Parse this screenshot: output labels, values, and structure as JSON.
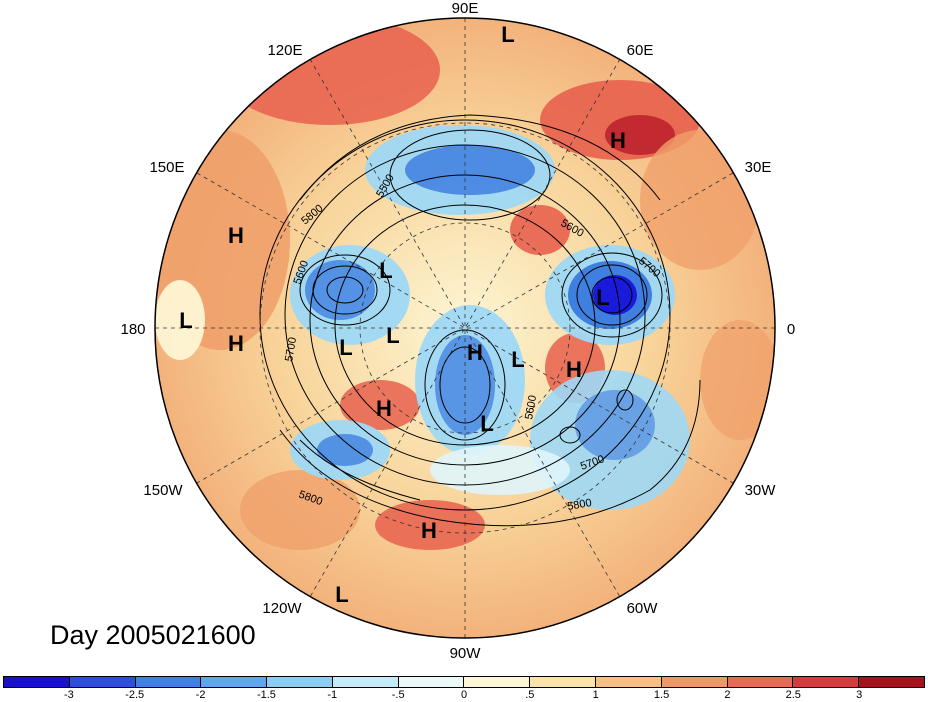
{
  "map": {
    "projection": "north-polar-stereographic",
    "longitude_labels": [
      "90E",
      "60E",
      "30E",
      "0",
      "30W",
      "60W",
      "90W",
      "120W",
      "150W",
      "180",
      "150E",
      "120E"
    ],
    "contour_labels": [
      "5500",
      "5600",
      "5700",
      "5800",
      "5600",
      "5700",
      "5800",
      "5700",
      "5600",
      "5800"
    ],
    "pressure_centers": [
      {
        "type": "L"
      },
      {
        "type": "H"
      },
      {
        "type": "H"
      },
      {
        "type": "L"
      },
      {
        "type": "L"
      },
      {
        "type": "H"
      },
      {
        "type": "L"
      },
      {
        "type": "L"
      },
      {
        "type": "L"
      },
      {
        "type": "H"
      },
      {
        "type": "L"
      },
      {
        "type": "H"
      },
      {
        "type": "H"
      },
      {
        "type": "L"
      },
      {
        "type": "H"
      },
      {
        "type": "L"
      }
    ],
    "colors": {
      "deep_blue": "#1a1adb",
      "blue": "#3f7fe0",
      "light_blue": "#9fd8f5",
      "very_light_blue": "#dff5fb",
      "cream": "#fdf6d4",
      "light_orange": "#f8d49a",
      "orange": "#f0a06a",
      "red": "#e8604e",
      "dark_red": "#b81a28"
    }
  },
  "caption": "Day 2005021600",
  "colorbar": {
    "colors": [
      "#1a10cc",
      "#2f4ee0",
      "#3f7fe8",
      "#5ea6ee",
      "#8ccdf3",
      "#c4ebf8",
      "#eafaf9",
      "#fdf7d8",
      "#fbe3ab",
      "#f6c085",
      "#f0986a",
      "#e86a55",
      "#d73a3c",
      "#a8101e"
    ],
    "ticks": [
      "-3",
      "-2.5",
      "-2",
      "-1.5",
      "-1",
      "-.5",
      "0",
      ".5",
      "1",
      "1.5",
      "2",
      "2.5",
      "3"
    ]
  }
}
